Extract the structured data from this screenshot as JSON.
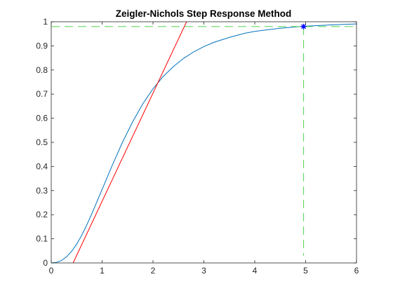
{
  "chart_data": {
    "type": "line",
    "title": "Zeigler-Nichols Step Response Method",
    "xlabel": "",
    "ylabel": "",
    "xlim": [
      0,
      6
    ],
    "ylim": [
      0,
      1
    ],
    "xticks": [
      "0",
      "1",
      "2",
      "3",
      "4",
      "5",
      "6"
    ],
    "yticks": [
      "0",
      "0.1",
      "0.2",
      "0.3",
      "0.4",
      "0.5",
      "0.6",
      "0.7",
      "0.8",
      "0.9",
      "1"
    ],
    "grid": false,
    "legend": "none",
    "series": [
      {
        "kind": "response-curve",
        "color": "#0072bd",
        "x": [
          0,
          0.1,
          0.2,
          0.3,
          0.4,
          0.5,
          0.6,
          0.7,
          0.8,
          0.9,
          1.0,
          1.2,
          1.4,
          1.6,
          1.8,
          2.0,
          2.2,
          2.4,
          2.6,
          2.8,
          3.0,
          3.2,
          3.5,
          3.8,
          4.0,
          4.5,
          4.96,
          5.5,
          6.0
        ],
        "y": [
          0,
          0.002,
          0.01,
          0.025,
          0.048,
          0.078,
          0.115,
          0.158,
          0.205,
          0.255,
          0.305,
          0.405,
          0.5,
          0.585,
          0.66,
          0.722,
          0.773,
          0.814,
          0.848,
          0.875,
          0.897,
          0.915,
          0.935,
          0.952,
          0.96,
          0.973,
          0.981,
          0.987,
          0.991
        ]
      },
      {
        "kind": "tangent-line",
        "color": "#ff0000",
        "x": [
          0.43,
          2.66
        ],
        "y": [
          0,
          1
        ]
      },
      {
        "kind": "horizontal-reference",
        "color": "#4dd44d",
        "style": "dashed",
        "x": [
          0,
          6
        ],
        "y": [
          0.98,
          0.98
        ]
      },
      {
        "kind": "vertical-reference",
        "color": "#4dd44d",
        "style": "dashed",
        "x": [
          4.96,
          4.96
        ],
        "y": [
          0.98,
          0.03
        ]
      }
    ],
    "marker": {
      "kind": "asterisk",
      "color": "#0000ff",
      "x": 4.96,
      "y": 0.98
    }
  }
}
